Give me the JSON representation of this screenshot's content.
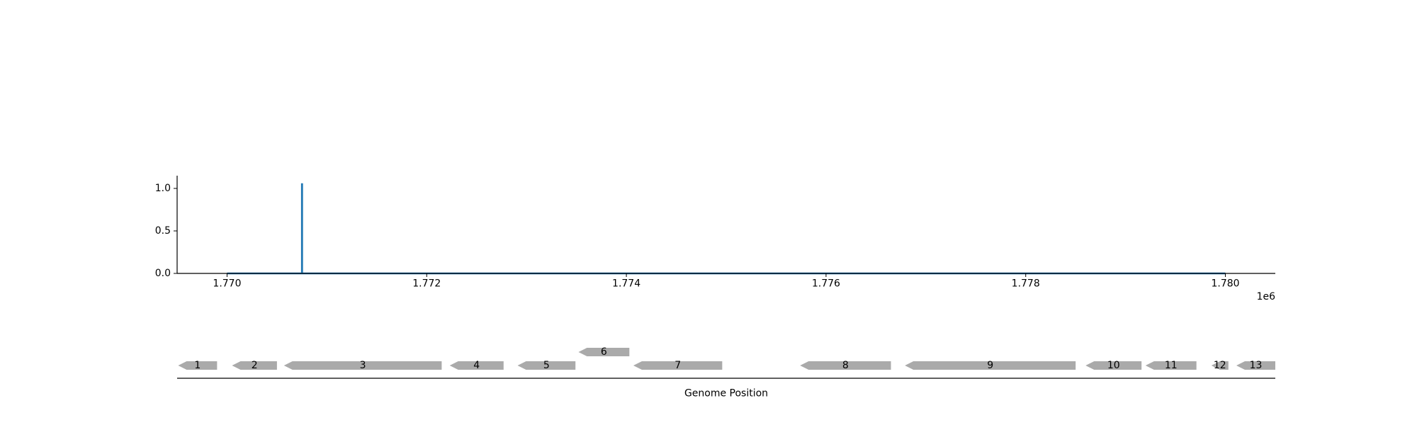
{
  "chart_data": [
    {
      "type": "line",
      "x": [
        1770000,
        1770750,
        1770750,
        1770752,
        1770752,
        1780000
      ],
      "y": [
        0.0,
        0.0,
        1.05,
        1.05,
        0.0,
        0.0
      ],
      "xlim": [
        1769500,
        1780500
      ],
      "ylim": [
        0.0,
        1.15
      ],
      "xticks": [
        1770000,
        1772000,
        1774000,
        1776000,
        1778000,
        1780000
      ],
      "xtick_labels": [
        "1.770",
        "1.772",
        "1.774",
        "1.776",
        "1.778",
        "1.780"
      ],
      "yticks": [
        0.0,
        0.5,
        1.0
      ],
      "ytick_labels": [
        "0.0",
        "0.5",
        "1.0"
      ],
      "x_offset_label": "1e6",
      "series_color": "#1f77b4",
      "grid": false
    },
    {
      "type": "gene-track",
      "xlabel": "Genome Position",
      "xlim": [
        1769500,
        1780500
      ],
      "gene_color": "#aaaaaa",
      "genes": [
        {
          "label": "1",
          "start": 1769510,
          "end": 1769900,
          "strand": "-",
          "level": 0
        },
        {
          "label": "2",
          "start": 1770050,
          "end": 1770500,
          "strand": "-",
          "level": 0
        },
        {
          "label": "3",
          "start": 1770570,
          "end": 1772150,
          "strand": "-",
          "level": 0
        },
        {
          "label": "4",
          "start": 1772230,
          "end": 1772770,
          "strand": "-",
          "level": 0
        },
        {
          "label": "5",
          "start": 1772910,
          "end": 1773490,
          "strand": "-",
          "level": 0
        },
        {
          "label": "6",
          "start": 1773520,
          "end": 1774030,
          "strand": "-",
          "level": 1
        },
        {
          "label": "7",
          "start": 1774070,
          "end": 1774960,
          "strand": "-",
          "level": 0
        },
        {
          "label": "8",
          "start": 1775740,
          "end": 1776650,
          "strand": "-",
          "level": 0
        },
        {
          "label": "9",
          "start": 1776790,
          "end": 1778500,
          "strand": "-",
          "level": 0
        },
        {
          "label": "10",
          "start": 1778600,
          "end": 1779160,
          "strand": "-",
          "level": 0
        },
        {
          "label": "11",
          "start": 1779200,
          "end": 1779710,
          "strand": "-",
          "level": 0
        },
        {
          "label": "12",
          "start": 1779860,
          "end": 1780030,
          "strand": "-",
          "level": 0
        },
        {
          "label": "13",
          "start": 1780110,
          "end": 1780500,
          "strand": "-",
          "level": 0
        }
      ]
    }
  ]
}
